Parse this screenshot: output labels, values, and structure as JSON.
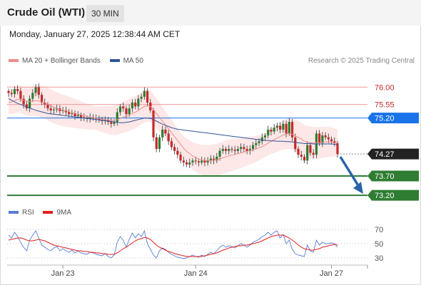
{
  "header": {
    "title": "Crude Oil (WTI)",
    "timeframe": "30 MIN"
  },
  "timestamp": "Monday, January 27, 2025 12:38:44 AM CET",
  "legend_main": [
    {
      "label": "MA 20 + Bollinger Bands",
      "color": "#f08c8c"
    },
    {
      "label": "MA 50",
      "color": "#2f5597"
    }
  ],
  "credit": "Research © 2025 Trading Central",
  "legend_rsi": [
    {
      "label": "RSI",
      "color": "#5b7bd5"
    },
    {
      "label": "9MA",
      "color": "#e02020"
    }
  ],
  "colors": {
    "up": "#2e7d32",
    "down": "#c62828",
    "resistance": "#c62828",
    "support": "#2e7d32",
    "pivot": "#1a73e8",
    "arrow": "#2a64a8"
  },
  "chart_data": [
    {
      "type": "candlestick",
      "title": "Crude Oil (WTI)",
      "timeframe": "30 MIN",
      "ylim": [
        73.0,
        76.3
      ],
      "x_ticks": [
        "Jan 23",
        "Jan 24",
        "Jan 27"
      ],
      "levels": [
        {
          "value": "76.00",
          "role": "resistance",
          "style": "label"
        },
        {
          "value": "75.55",
          "role": "resistance",
          "style": "label"
        },
        {
          "value": "75.20",
          "role": "pivot",
          "style": "box"
        },
        {
          "value": "74.27",
          "role": "last",
          "style": "box"
        },
        {
          "value": "73.70",
          "role": "support",
          "style": "box"
        },
        {
          "value": "73.20",
          "role": "support",
          "style": "box"
        }
      ],
      "close": [
        75.85,
        75.82,
        75.95,
        75.9,
        75.7,
        75.55,
        75.45,
        75.7,
        75.85,
        76.0,
        75.8,
        75.6,
        75.55,
        75.45,
        75.4,
        75.42,
        75.45,
        75.38,
        75.4,
        75.35,
        75.3,
        75.32,
        75.25,
        75.28,
        75.22,
        75.2,
        75.18,
        75.22,
        75.2,
        75.18,
        75.15,
        75.12,
        75.15,
        75.1,
        75.05,
        75.1,
        75.35,
        75.5,
        75.45,
        75.3,
        75.45,
        75.6,
        75.5,
        75.7,
        75.75,
        75.9,
        75.6,
        75.4,
        74.7,
        74.4,
        74.7,
        74.9,
        74.8,
        74.6,
        74.45,
        74.35,
        74.25,
        74.1,
        74.05,
        74.0,
        74.05,
        74.1,
        74.08,
        74.05,
        74.1,
        74.05,
        74.1,
        74.15,
        74.1,
        74.2,
        74.35,
        74.4,
        74.35,
        74.4,
        74.38,
        74.35,
        74.4,
        74.45,
        74.4,
        74.35,
        74.4,
        74.5,
        74.55,
        74.6,
        74.7,
        74.75,
        74.9,
        74.85,
        74.95,
        75.0,
        74.9,
        75.05,
        74.8,
        75.1,
        74.7,
        74.4,
        74.25,
        74.2,
        74.1,
        74.5,
        74.3,
        74.25,
        74.8,
        74.55,
        74.75,
        74.7,
        74.65,
        74.6,
        74.55,
        74.27
      ],
      "ma20": [
        75.6,
        75.62,
        75.65,
        75.68,
        75.68,
        75.66,
        75.64,
        75.63,
        75.64,
        75.65,
        75.64,
        75.62,
        75.6,
        75.56,
        75.52,
        75.48,
        75.45,
        75.42,
        75.4,
        75.38,
        75.36,
        75.34,
        75.32,
        75.3,
        75.28,
        75.26,
        75.24,
        75.22,
        75.21,
        75.2,
        75.18,
        75.17,
        75.16,
        75.15,
        75.14,
        75.14,
        75.16,
        75.19,
        75.22,
        75.25,
        75.28,
        75.32,
        75.35,
        75.4,
        75.45,
        75.5,
        75.52,
        75.5,
        75.42,
        75.32,
        75.22,
        75.12,
        75.02,
        74.92,
        74.82,
        74.72,
        74.62,
        74.52,
        74.42,
        74.34,
        74.28,
        74.22,
        74.18,
        74.14,
        74.12,
        74.1,
        74.1,
        74.1,
        74.11,
        74.12,
        74.14,
        74.17,
        74.2,
        74.22,
        74.24,
        74.26,
        74.28,
        74.3,
        74.32,
        74.34,
        74.36,
        74.38,
        74.4,
        74.43,
        74.46,
        74.5,
        74.55,
        74.6,
        74.64,
        74.68,
        74.72,
        74.76,
        74.78,
        74.8,
        74.78,
        74.74,
        74.7,
        74.66,
        74.6,
        74.58,
        74.56,
        74.55,
        74.56,
        74.56,
        74.57,
        74.58,
        74.58,
        74.58,
        74.57,
        74.55
      ],
      "ma50": [
        75.7,
        75.66,
        75.62,
        75.58,
        75.55,
        75.52,
        75.49,
        75.46,
        75.43,
        75.4,
        75.38,
        75.36,
        75.34,
        75.32,
        75.31,
        75.3,
        75.29,
        75.28,
        75.27,
        75.26,
        75.25,
        75.24,
        75.23,
        75.22,
        75.21,
        75.2,
        75.19,
        75.18,
        75.17,
        75.16,
        75.15,
        75.14,
        75.13,
        75.12,
        75.11,
        75.1,
        75.09,
        75.08,
        75.08,
        75.09,
        75.1,
        75.12,
        75.14,
        75.16,
        75.18,
        75.2,
        75.2,
        75.19,
        75.16,
        75.12,
        75.08,
        75.04,
        75.01,
        74.98,
        74.95,
        74.93,
        74.91,
        74.9,
        74.89,
        74.88,
        74.87,
        74.86,
        74.85,
        74.84,
        74.83,
        74.82,
        74.81,
        74.8,
        74.79,
        74.78,
        74.77,
        74.76,
        74.75,
        74.74,
        74.73,
        74.72,
        74.71,
        74.7,
        74.69,
        74.68,
        74.67,
        74.66,
        74.65,
        74.64,
        74.63,
        74.62,
        74.62,
        74.61,
        74.61,
        74.6,
        74.6,
        74.6,
        74.59,
        74.59,
        74.58,
        74.57,
        74.56,
        74.55,
        74.54,
        74.54,
        74.54,
        74.53,
        74.53,
        74.53,
        74.53,
        74.53,
        74.53,
        74.53,
        74.52,
        74.52
      ],
      "forecast_to": 73.2
    },
    {
      "type": "line",
      "title": "RSI",
      "ylim": [
        20,
        80
      ],
      "y_ticks": [
        "70",
        "50",
        "30"
      ],
      "series": [
        {
          "name": "RSI",
          "values": [
            62,
            58,
            66,
            60,
            52,
            45,
            40,
            55,
            62,
            68,
            58,
            48,
            45,
            42,
            40,
            44,
            46,
            40,
            43,
            40,
            38,
            41,
            37,
            40,
            37,
            36,
            35,
            38,
            37,
            35,
            34,
            33,
            36,
            32,
            30,
            34,
            52,
            60,
            55,
            45,
            56,
            65,
            58,
            64,
            60,
            68,
            50,
            42,
            34,
            30,
            40,
            44,
            42,
            38,
            35,
            33,
            31,
            30,
            29,
            30,
            32,
            34,
            32,
            31,
            34,
            32,
            35,
            38,
            36,
            40,
            45,
            48,
            45,
            47,
            46,
            44,
            47,
            50,
            48,
            45,
            48,
            52,
            54,
            56,
            60,
            62,
            66,
            62,
            66,
            68,
            58,
            63,
            50,
            55,
            42,
            36,
            34,
            33,
            32,
            48,
            40,
            38,
            55,
            48,
            52,
            50,
            50,
            51,
            50,
            45
          ]
        },
        {
          "name": "9MA",
          "values": [
            55,
            56,
            57,
            58,
            58,
            57,
            55,
            54,
            54,
            55,
            56,
            55,
            54,
            52,
            50,
            48,
            47,
            46,
            45,
            44,
            43,
            42,
            41,
            40,
            40,
            39,
            39,
            38,
            38,
            37,
            37,
            36,
            36,
            35,
            35,
            35,
            37,
            40,
            43,
            45,
            48,
            51,
            54,
            56,
            57,
            59,
            58,
            56,
            52,
            48,
            45,
            43,
            41,
            39,
            38,
            36,
            35,
            34,
            33,
            32,
            32,
            32,
            32,
            32,
            32,
            33,
            34,
            35,
            36,
            37,
            39,
            41,
            42,
            44,
            45,
            46,
            47,
            47,
            48,
            48,
            49,
            50,
            51,
            52,
            54,
            56,
            58,
            60,
            61,
            62,
            62,
            62,
            60,
            58,
            55,
            52,
            48,
            45,
            43,
            42,
            41,
            41,
            42,
            43,
            45,
            46,
            47,
            48,
            49,
            48
          ]
        }
      ]
    }
  ]
}
